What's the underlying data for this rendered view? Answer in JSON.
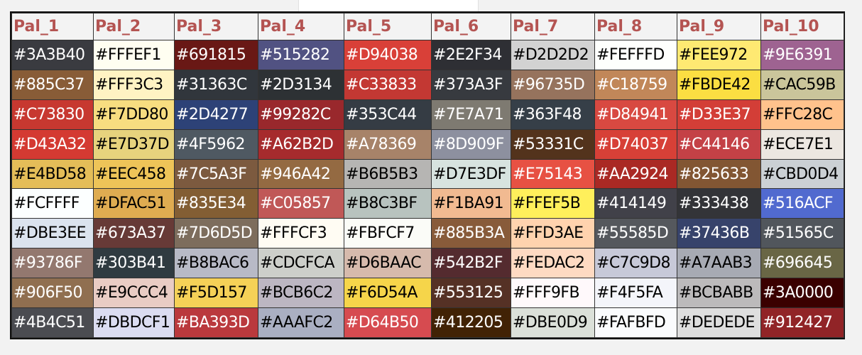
{
  "table": {
    "headers": [
      "Pal_1",
      "Pal_2",
      "Pal_3",
      "Pal_4",
      "Pal_5",
      "Pal_6",
      "Pal_7",
      "Pal_8",
      "Pal_9",
      "Pal_10"
    ],
    "rows": [
      [
        "#3A3B40",
        "#FFFEF1",
        "#691815",
        "#515282",
        "#D94038",
        "#2E2F34",
        "#D2D2D2",
        "#FEFFFD",
        "#FEE972",
        "#9E6391"
      ],
      [
        "#885C37",
        "#FFF3C3",
        "#31363C",
        "#2D3134",
        "#C33833",
        "#373A3F",
        "#96735D",
        "#C18759",
        "#FBDE42",
        "#CAC59B"
      ],
      [
        "#C73830",
        "#F7DD80",
        "#2D4277",
        "#99282C",
        "#353C44",
        "#7E7A71",
        "#363F48",
        "#D84941",
        "#D33E37",
        "#FFC28C"
      ],
      [
        "#D43A32",
        "#E7D37D",
        "#4F5962",
        "#A62B2D",
        "#A78369",
        "#8D909F",
        "#53331C",
        "#D74037",
        "#C44146",
        "#ECE7E1"
      ],
      [
        "#E4BD58",
        "#EEC458",
        "#7C5A3F",
        "#946A42",
        "#B6B5B3",
        "#D7E3DF",
        "#E75143",
        "#AA2924",
        "#825633",
        "#CBD0D4"
      ],
      [
        "#FCFFFF",
        "#DFAC51",
        "#835E34",
        "#C05857",
        "#B8C3BF",
        "#F1BA91",
        "#FFEF5B",
        "#414149",
        "#333438",
        "#516ACF"
      ],
      [
        "#DBE3EE",
        "#673A37",
        "#7D6D5D",
        "#FFFCF3",
        "#FBFCF7",
        "#885B3A",
        "#FFD3AE",
        "#55585D",
        "#37436B",
        "#51565C"
      ],
      [
        "#93786F",
        "#303B41",
        "#B8BAC6",
        "#CDCFCA",
        "#D6BAAC",
        "#542B2F",
        "#FEDAC2",
        "#C7C9D8",
        "#A7AAB3",
        "#696645"
      ],
      [
        "#906F50",
        "#E9CCC4",
        "#F5D157",
        "#BCB6C2",
        "#F6D54A",
        "#553125",
        "#FFF9FB",
        "#F4F5FA",
        "#BCBABB",
        "#3A0000"
      ],
      [
        "#4B4C51",
        "#DBDCF1",
        "#BA393D",
        "#AAAFC2",
        "#D64B50",
        "#412205",
        "#DBE0D9",
        "#FAFBFD",
        "#DEDEDE",
        "#912427"
      ]
    ]
  }
}
